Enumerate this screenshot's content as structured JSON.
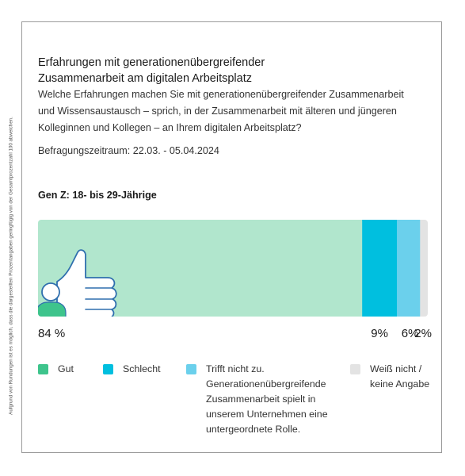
{
  "side_note": "Aufgrund von Rundungen ist es möglich, dass die dargestellten Prozentangaben geringfügig von der Gesamtprozentzahl 100 abweichen.",
  "title_lines": [
    "Erfahrungen mit generationenübergreifender",
    "Zusammenarbeit am digitalen Arbeitsplatz"
  ],
  "question_lines": [
    "Welche Erfahrungen machen Sie mit generationenübergreifender Zusammenarbeit",
    "und Wissensaustausch – sprich, in der Zusammenarbeit mit älteren und jüngeren",
    "Kolleginnen und Kollegen – an Ihrem digitalen Arbeitsplatz?"
  ],
  "period": "Befragungszeitraum: 22.03. - 05.04.2024",
  "group_label": "Gen Z: 18- bis 29-Jährige",
  "colors": {
    "gut": "#b1e6cd",
    "gut_swatch": "#3ec48c",
    "schlecht": "#00bfdf",
    "trifft_nicht_zu": "#6bd0ec",
    "weiss_nicht": "#e3e3e3",
    "icon_outline": "#2f6fae",
    "person": "#3ec48c"
  },
  "chart_data": {
    "type": "bar",
    "stacked": true,
    "orientation": "horizontal",
    "categories": [
      "Gen Z: 18- bis 29-Jährige"
    ],
    "unit": "%",
    "series": [
      {
        "name": "Gut",
        "values": [
          84
        ],
        "label": "84 %",
        "color": "#b1e6cd"
      },
      {
        "name": "Schlecht",
        "values": [
          9
        ],
        "label": "9%",
        "color": "#00bfdf"
      },
      {
        "name": "Trifft nicht zu. Generationenübergreifende Zusammenarbeit spielt in unserem Unternehmen eine untergeordnete Rolle.",
        "values": [
          6
        ],
        "label": "6%",
        "color": "#6bd0ec"
      },
      {
        "name": "Weiß nicht / keine Angabe",
        "values": [
          2
        ],
        "label": "2%",
        "color": "#e3e3e3"
      }
    ],
    "legend_position": "bottom",
    "grid": false
  },
  "legend": [
    {
      "swatch": "#3ec48c",
      "lines": [
        "Gut"
      ]
    },
    {
      "swatch": "#00bfdf",
      "lines": [
        "Schlecht"
      ]
    },
    {
      "swatch": "#6bd0ec",
      "lines": [
        "Trifft nicht zu.",
        "Generationenübergreifende",
        "Zusammenarbeit spielt in",
        "unserem Unternehmen eine",
        "untergeordnete Rolle."
      ]
    },
    {
      "swatch": "#e3e3e3",
      "lines": [
        "Weiß nicht /",
        "keine Angabe"
      ]
    }
  ]
}
